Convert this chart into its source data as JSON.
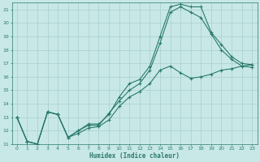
{
  "title": "",
  "xlabel": "Humidex (Indice chaleur)",
  "bg_color": "#c8e8e8",
  "grid_color": "#a8cece",
  "line_color": "#2a7a6a",
  "xlim": [
    -0.5,
    23.5
  ],
  "ylim": [
    11,
    21.5
  ],
  "xticks": [
    0,
    1,
    2,
    3,
    4,
    5,
    6,
    7,
    8,
    9,
    10,
    11,
    12,
    13,
    14,
    15,
    16,
    17,
    18,
    19,
    20,
    21,
    22,
    23
  ],
  "yticks": [
    11,
    12,
    13,
    14,
    15,
    16,
    17,
    18,
    19,
    20,
    21
  ],
  "line1_x": [
    0,
    1,
    2,
    3,
    4,
    5,
    6,
    7,
    8,
    9,
    10,
    11,
    12,
    13,
    14,
    15,
    16,
    17,
    18,
    19,
    20,
    21,
    22,
    23
  ],
  "line1_y": [
    13,
    11.2,
    11,
    13.4,
    13.2,
    11.5,
    12.0,
    12.5,
    12.5,
    13.2,
    14.5,
    15.5,
    15.8,
    16.8,
    19.0,
    21.2,
    21.4,
    21.2,
    21.2,
    19.3,
    18.4,
    17.5,
    17.0,
    16.9
  ],
  "line2_x": [
    0,
    1,
    2,
    3,
    4,
    5,
    6,
    7,
    8,
    9,
    10,
    11,
    12,
    13,
    14,
    15,
    16,
    17,
    18,
    19,
    20,
    21,
    22,
    23
  ],
  "line2_y": [
    13,
    11.2,
    11,
    13.4,
    13.2,
    11.5,
    12.0,
    12.4,
    12.4,
    13.3,
    14.2,
    15.0,
    15.5,
    16.5,
    18.5,
    20.8,
    21.2,
    20.8,
    20.4,
    19.2,
    18.0,
    17.3,
    16.8,
    16.7
  ],
  "line3_x": [
    0,
    1,
    2,
    3,
    4,
    5,
    6,
    7,
    8,
    9,
    10,
    11,
    12,
    13,
    14,
    15,
    16,
    17,
    18,
    19,
    20,
    21,
    22,
    23
  ],
  "line3_y": [
    13,
    11.2,
    11,
    13.4,
    13.2,
    11.5,
    11.8,
    12.2,
    12.3,
    12.8,
    13.8,
    14.5,
    14.9,
    15.5,
    16.5,
    16.8,
    16.3,
    15.9,
    16.0,
    16.2,
    16.5,
    16.6,
    16.8,
    16.9
  ]
}
